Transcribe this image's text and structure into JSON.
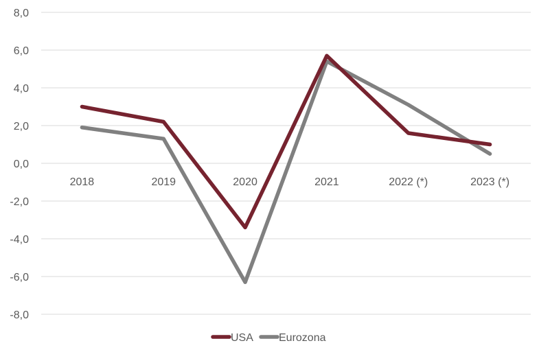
{
  "chart_data": {
    "type": "line",
    "categories": [
      "2018",
      "2019",
      "2020",
      "2021",
      "2022 (*)",
      "2023 (*)"
    ],
    "series": [
      {
        "name": "USA",
        "color": "#76232F",
        "values": [
          3.0,
          2.2,
          -3.4,
          5.7,
          1.6,
          1.0
        ]
      },
      {
        "name": "Eurozona",
        "color": "#808080",
        "values": [
          1.9,
          1.3,
          -6.3,
          5.4,
          3.1,
          0.5
        ]
      }
    ],
    "ylim": [
      -8,
      8
    ],
    "yticks": [
      "-8,0",
      "-6,0",
      "-4,0",
      "-2,0",
      "0,0",
      "2,0",
      "4,0",
      "6,0",
      "8,0"
    ],
    "grid": true,
    "legend": "bottom",
    "title": "",
    "xlabel": "",
    "ylabel": ""
  }
}
